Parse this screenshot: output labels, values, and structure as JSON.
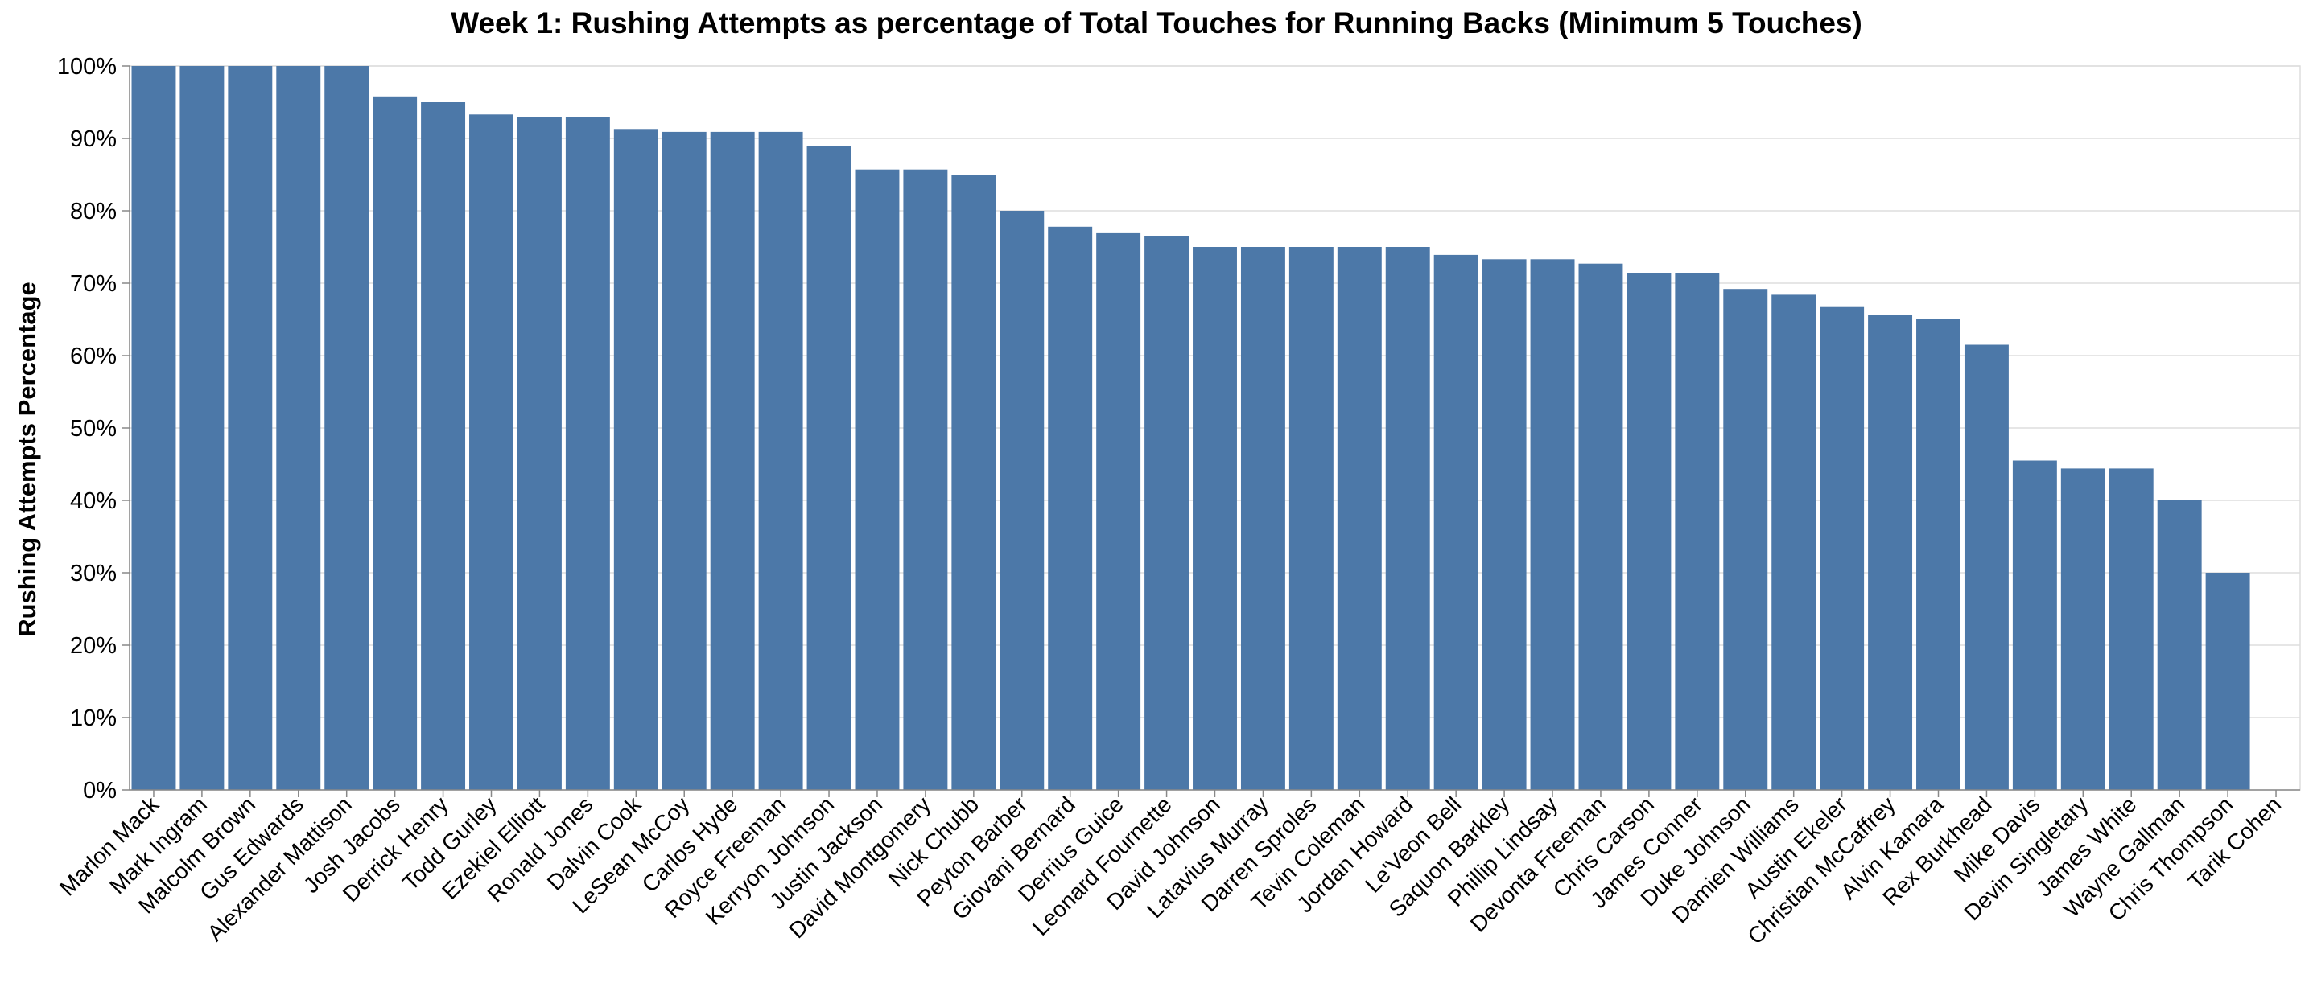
{
  "chart_data": {
    "type": "bar",
    "title": "Week 1: Rushing Attempts as percentage of Total Touches for Running Backs (Minimum 5 Touches)",
    "ylabel": "Rushing Attempts Percentage",
    "xlabel": "",
    "ylim": [
      0,
      100
    ],
    "yticks": [
      "0%",
      "10%",
      "20%",
      "30%",
      "40%",
      "50%",
      "60%",
      "70%",
      "80%",
      "90%",
      "100%"
    ],
    "grid": true,
    "bar_color": "#4c78a8",
    "categories": [
      "Marlon Mack",
      "Mark Ingram",
      "Malcolm Brown",
      "Gus Edwards",
      "Alexander Mattison",
      "Josh Jacobs",
      "Derrick Henry",
      "Todd Gurley",
      "Ezekiel Elliott",
      "Ronald Jones",
      "Dalvin Cook",
      "LeSean McCoy",
      "Carlos Hyde",
      "Royce Freeman",
      "Kerryon Johnson",
      "Justin Jackson",
      "David Montgomery",
      "Nick Chubb",
      "Peyton Barber",
      "Giovani Bernard",
      "Derrius Guice",
      "Leonard Fournette",
      "David Johnson",
      "Latavius Murray",
      "Darren Sproles",
      "Tevin Coleman",
      "Jordan Howard",
      "Le'Veon Bell",
      "Saquon Barkley",
      "Phillip Lindsay",
      "Devonta Freeman",
      "Chris Carson",
      "James Conner",
      "Duke Johnson",
      "Damien Williams",
      "Austin Ekeler",
      "Christian McCaffrey",
      "Alvin Kamara",
      "Rex Burkhead",
      "Mike Davis",
      "Devin Singletary",
      "James White",
      "Wayne Gallman",
      "Chris Thompson",
      "Tarik Cohen"
    ],
    "values": [
      100,
      100,
      100,
      100,
      100,
      95.8,
      95.0,
      93.3,
      92.9,
      92.9,
      91.3,
      90.9,
      90.9,
      90.9,
      88.9,
      85.7,
      85.7,
      85.0,
      80.0,
      77.8,
      76.9,
      76.5,
      75.0,
      75.0,
      75.0,
      75.0,
      75.0,
      73.9,
      73.3,
      73.3,
      72.7,
      71.4,
      71.4,
      69.2,
      68.4,
      66.7,
      65.6,
      65.0,
      61.5,
      45.5,
      44.4,
      44.4,
      40.0,
      30.0,
      0
    ]
  }
}
